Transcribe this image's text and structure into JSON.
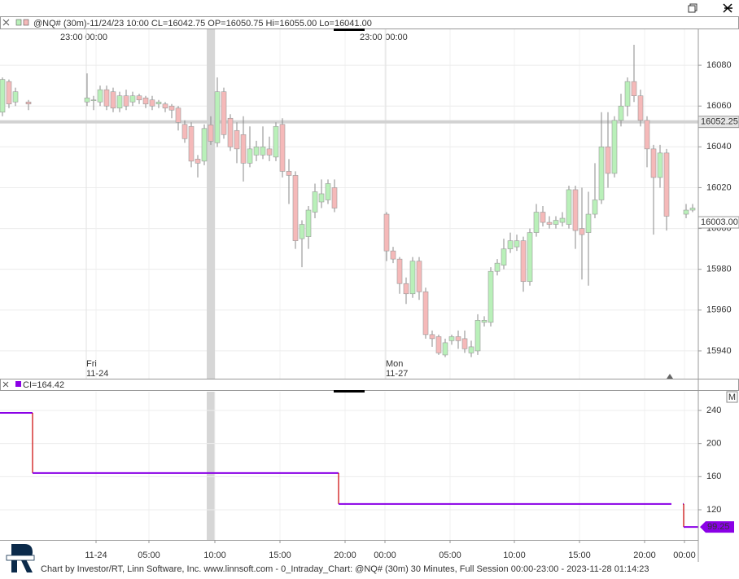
{
  "header": {
    "footer": "Chart by Investor/RT, Linn Software, Inc. www.linnsoft.com - 0_Intraday_Chart: @NQ# (30m) 30 Minutes, Full Session 00:00-23:00 - 2023-11-28 01:14:23"
  },
  "chart_data": [
    {
      "type": "candlestick",
      "title": "@NQ# (30m)-11/24/23 10:00 CL=16042.75 OP=16050.75 Hi=16055.00 Lo=16041.00",
      "x": [
        0,
        1,
        2,
        4,
        13,
        14,
        15,
        16,
        17,
        18,
        19,
        20,
        21,
        22,
        23,
        24,
        25,
        26,
        27,
        28,
        29,
        30,
        31,
        32,
        33,
        34,
        35,
        36,
        37,
        38,
        39,
        40,
        41,
        42,
        43,
        44,
        45,
        46,
        47,
        48,
        49,
        50,
        51,
        59,
        60,
        61,
        62,
        63,
        64,
        65,
        66,
        67,
        68,
        69,
        70,
        71,
        72,
        73,
        74,
        75,
        76,
        77,
        78,
        79,
        80,
        81,
        82,
        83,
        84,
        85,
        86,
        87,
        88,
        89,
        90,
        91,
        92,
        93,
        94,
        95,
        96,
        97,
        98,
        99,
        100,
        101,
        102,
        105,
        106
      ],
      "open": [
        16057,
        16072,
        16062,
        16062,
        16062,
        16063,
        16062,
        16068,
        16067,
        16059,
        16065,
        16062,
        16065,
        16064,
        16063,
        16061,
        16061,
        16060,
        16059,
        16051,
        16050,
        16034,
        16033,
        16050.75,
        16042,
        16067,
        16054,
        16048,
        16046,
        16032,
        16036,
        16036,
        16039,
        16035,
        16051,
        16028,
        16026,
        15995,
        15996,
        16008,
        16013,
        16014,
        16020,
        16007,
        15989,
        15985,
        15973,
        15968,
        15984,
        15969,
        15948,
        15947,
        15938,
        15945,
        15947,
        15946,
        15939,
        15940,
        15954,
        15954,
        15979,
        15982,
        15990,
        15991,
        15994,
        15974,
        15998,
        16008,
        16003,
        16002,
        16003,
        16002,
        16019,
        16000,
        15998,
        16007,
        16014,
        16040,
        16027,
        16053,
        16060,
        16072,
        16065,
        16053,
        16039,
        16025,
        16037,
        16007,
        16009
      ],
      "high": [
        16074,
        16073,
        16069,
        16063,
        16076,
        16065,
        16070,
        16070,
        16069,
        16067,
        16068,
        16067,
        16066,
        16065,
        16065,
        16063,
        16062,
        16061,
        16060,
        16053,
        16052,
        16036,
        16051,
        16055,
        16074,
        16069,
        16056,
        16052,
        16055,
        16050,
        16043,
        16050,
        16045,
        16052,
        16054,
        16034,
        16028,
        16004,
        16011,
        16022,
        16024,
        16024,
        16024,
        16008,
        15991,
        15986,
        15976,
        15986,
        15986,
        15971,
        15950,
        15948,
        15946,
        15948,
        15950,
        15950,
        15945,
        15958,
        15957,
        15981,
        15985,
        15995,
        15998,
        15997,
        15996,
        16000,
        16012,
        16011,
        16006,
        16006,
        16008,
        16021,
        16021,
        16020,
        16018,
        16032,
        16057,
        16057,
        16055,
        16066,
        16074,
        16090,
        16068,
        16055,
        16041,
        16041,
        16039,
        16012,
        16012
      ],
      "low": [
        16055,
        16059,
        16060,
        16058,
        16060,
        16058,
        16060,
        16058,
        16057,
        16057,
        16058,
        16060,
        16061,
        16059,
        16058,
        16059,
        16057,
        16054,
        16048,
        16042,
        16030,
        16025,
        16031,
        16041,
        16040,
        16044,
        16038,
        16032,
        16023,
        16030,
        16033,
        16034,
        16033,
        16033,
        16025,
        16012,
        15990,
        15981,
        15990,
        16005,
        16010,
        16012,
        16008,
        15984,
        15983,
        15968,
        15963,
        15966,
        15965,
        15946,
        15942,
        15938,
        15937,
        15943,
        15941,
        15939,
        15937,
        15938,
        15952,
        15952,
        15977,
        15980,
        15988,
        15989,
        15969,
        15972,
        15996,
        16001,
        16000,
        16000,
        16001,
        16000,
        15990,
        15975,
        15972,
        16005,
        16012,
        16020,
        16025,
        16050,
        16055,
        16062,
        16050,
        16030,
        15997,
        16020,
        15999,
        16005,
        16008
      ],
      "close": [
        16073,
        16061,
        16067,
        16061,
        16064,
        16063,
        16068,
        16060,
        16059,
        16065,
        16060,
        16065,
        16063,
        16061,
        16060,
        16062,
        16059,
        16058,
        16052,
        16044,
        16033,
        16032,
        16049,
        16042.75,
        16067,
        16046,
        16040,
        16039,
        16032,
        16039,
        16040,
        16040,
        16036,
        16050,
        16028,
        16026,
        15994,
        16002,
        16009,
        16018,
        16017,
        16022,
        16010,
        15989,
        15985,
        15973,
        15968,
        15984,
        15969,
        15948,
        15946,
        15939,
        15944,
        15947,
        15945,
        15941,
        15942,
        15955,
        15955,
        15979,
        15983,
        15990,
        15994,
        15994,
        15974,
        15998,
        16008,
        16003,
        16002,
        16004,
        16005,
        16019,
        15999,
        15997,
        16007,
        16014,
        16040,
        16027,
        16053,
        16060,
        16072,
        16065,
        16053,
        16039,
        16025,
        16037,
        16006,
        16009,
        16010
      ],
      "up_color": "#b9f0b9",
      "down_color": "#f5b9b9",
      "xlim": [
        -0.375,
        106.875
      ],
      "ylim": [
        15926.4,
        16097.6
      ],
      "yticks": [
        15940,
        15960,
        15980,
        16000,
        16020,
        16040,
        16060,
        16080
      ],
      "session_labels": [
        {
          "value": 10.6,
          "label": "23:00"
        },
        {
          "value": 14.4,
          "label": "00:00"
        },
        {
          "value": 56.6,
          "label": "23:00"
        },
        {
          "value": 60.5,
          "label": "00:00"
        }
      ],
      "day_labels": [
        {
          "value": 12.875,
          "day": "Fri",
          "date": "11-24"
        },
        {
          "value": 58.875,
          "day": "Mon",
          "date": "11-27"
        }
      ],
      "price_lines": [
        16052.25,
        {
          "value": 16003,
          "label": "16003.00"
        }
      ],
      "highlight_bar": 32
    },
    {
      "type": "step",
      "title": "CI=164.42",
      "x": [
        -0.375,
        4.625,
        51.625,
        102.75,
        104.5,
        104.625,
        106.875
      ],
      "values": [
        237,
        164.42,
        127,
        null,
        127,
        99.25,
        99.25
      ],
      "color": "#8a00e6",
      "last_value": 99.25,
      "xlim": [
        -0.375,
        106.875
      ],
      "ylim": [
        83.6,
        262.6
      ],
      "yticks": [
        120,
        160,
        200,
        240
      ],
      "xticks": [
        {
          "value": 14.375,
          "label": "11-24"
        },
        {
          "value": 22.5,
          "label": "05:00"
        },
        {
          "value": 32.625,
          "label": "10:00"
        },
        {
          "value": 42.625,
          "label": "15:00"
        },
        {
          "value": 52.625,
          "label": "20:00"
        },
        {
          "value": 58.75,
          "label": "00:00"
        },
        {
          "value": 68.75,
          "label": "05:00"
        },
        {
          "value": 78.625,
          "label": "10:00"
        },
        {
          "value": 88.625,
          "label": "15:00"
        },
        {
          "value": 98.625,
          "label": "20:00"
        },
        {
          "value": 104.75,
          "label": "00:00"
        }
      ]
    }
  ]
}
